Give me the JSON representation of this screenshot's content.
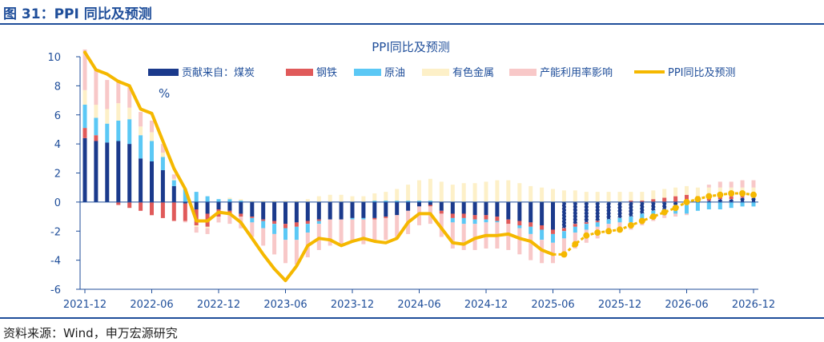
{
  "figure": {
    "title": "图 31：PPI 同比及预测",
    "source": "资料来源：Wind，申万宏源研究"
  },
  "colors": {
    "coal": "#1b3a8c",
    "steel": "#e05a5a",
    "crude_oil": "#5bc8f5",
    "nonferrous": "#fdf0c8",
    "capacity": "#f8c8c8",
    "ppi": "#f5b800",
    "axis": "#1f4e9a"
  },
  "chart_data": {
    "type": "bar",
    "title": "PPI同比及预测",
    "unit_label": "%",
    "ylim": [
      -6,
      10
    ],
    "yticks": [
      10,
      8,
      6,
      4,
      2,
      0,
      -2,
      -4,
      -6
    ],
    "x_tick_labels": [
      "2021-12",
      "2022-06",
      "2022-12",
      "2023-06",
      "2023-12",
      "2024-06",
      "2024-12",
      "2025-06",
      "2025-12",
      "2026-06",
      "2026-12"
    ],
    "x_tick_months": [
      "2021-12",
      "2022-06",
      "2022-12",
      "2023-06",
      "2023-12",
      "2024-06",
      "2024-12",
      "2025-06",
      "2025-12",
      "2026-06",
      "2026-12"
    ],
    "months": [
      "2021-12",
      "2022-01",
      "2022-02",
      "2022-03",
      "2022-04",
      "2022-05",
      "2022-06",
      "2022-07",
      "2022-08",
      "2022-09",
      "2022-10",
      "2022-11",
      "2022-12",
      "2023-01",
      "2023-02",
      "2023-03",
      "2023-04",
      "2023-05",
      "2023-06",
      "2023-07",
      "2023-08",
      "2023-09",
      "2023-10",
      "2023-11",
      "2023-12",
      "2024-01",
      "2024-02",
      "2024-03",
      "2024-04",
      "2024-05",
      "2024-06",
      "2024-07",
      "2024-08",
      "2024-09",
      "2024-10",
      "2024-11",
      "2024-12",
      "2025-01",
      "2025-02",
      "2025-03",
      "2025-04",
      "2025-05",
      "2025-06",
      "2025-07",
      "2025-08",
      "2025-09",
      "2025-10",
      "2025-11",
      "2025-12",
      "2026-01",
      "2026-02",
      "2026-03",
      "2026-04",
      "2026-05",
      "2026-06",
      "2026-07",
      "2026-08",
      "2026-09",
      "2026-10",
      "2026-11",
      "2026-12"
    ],
    "forecast_start": "2025-07",
    "grid": false,
    "legend_position": "top",
    "series": [
      {
        "name": "贡献来自：煤炭",
        "key": "coal",
        "kind": "bar",
        "values": [
          4.4,
          4.2,
          4.1,
          4.2,
          4.0,
          3.0,
          2.8,
          2.2,
          1.1,
          -0.1,
          -0.5,
          -0.8,
          -0.5,
          -0.6,
          -0.8,
          -1.0,
          -1.2,
          -1.3,
          -1.5,
          -1.4,
          -1.3,
          -1.2,
          -1.2,
          -1.2,
          -1.1,
          -1.1,
          -1.1,
          -1.0,
          -0.9,
          -0.6,
          -0.3,
          -0.2,
          -0.6,
          -0.8,
          -0.8,
          -0.9,
          -0.9,
          -1.0,
          -1.2,
          -1.3,
          -1.4,
          -1.6,
          -1.9,
          -1.8,
          -1.5,
          -1.4,
          -1.3,
          -1.2,
          -1.1,
          -1.0,
          -0.8,
          -0.6,
          -0.5,
          -0.3,
          -0.2,
          0.0,
          0.1,
          0.2,
          0.2,
          0.3,
          0.3
        ]
      },
      {
        "name": "钢铁",
        "key": "steel",
        "kind": "bar",
        "values": [
          0.7,
          0.4,
          0.0,
          -0.2,
          -0.4,
          -0.6,
          -0.9,
          -1.1,
          -1.3,
          -1.2,
          -1.1,
          -0.9,
          -0.5,
          -0.3,
          -0.2,
          -0.1,
          -0.1,
          -0.2,
          -0.3,
          -0.3,
          -0.2,
          -0.1,
          0.0,
          0.0,
          0.0,
          0.0,
          -0.1,
          -0.1,
          0.0,
          0.0,
          0.0,
          -0.1,
          -0.2,
          -0.3,
          -0.3,
          -0.3,
          -0.3,
          -0.3,
          -0.3,
          -0.3,
          -0.3,
          -0.3,
          -0.3,
          -0.2,
          -0.2,
          -0.1,
          -0.1,
          0.0,
          0.0,
          0.1,
          0.1,
          0.2,
          0.3,
          0.4,
          0.5,
          0.4,
          0.3,
          0.2,
          0.2,
          0.1,
          0.1
        ]
      },
      {
        "name": "原油",
        "key": "crude_oil",
        "kind": "bar",
        "values": [
          1.6,
          1.2,
          1.3,
          1.4,
          1.7,
          1.6,
          1.4,
          0.9,
          0.4,
          0.9,
          0.7,
          0.4,
          0.2,
          0.2,
          0.1,
          -0.3,
          -0.5,
          -0.7,
          -0.8,
          -0.9,
          -0.6,
          -0.2,
          0.0,
          0.0,
          -0.1,
          -0.1,
          0.1,
          0.1,
          0.1,
          0.1,
          0.1,
          0.1,
          0.0,
          -0.3,
          -0.4,
          -0.3,
          -0.2,
          -0.1,
          0.0,
          -0.2,
          -0.5,
          -0.7,
          -0.6,
          -0.5,
          -0.4,
          -0.4,
          -0.3,
          -0.3,
          -0.3,
          -0.4,
          -0.4,
          -0.4,
          -0.4,
          -0.5,
          -0.6,
          -0.6,
          -0.5,
          -0.5,
          -0.4,
          -0.3,
          -0.3
        ]
      },
      {
        "name": "有色金属",
        "key": "nonferrous",
        "kind": "bar",
        "values": [
          1.0,
          0.9,
          1.0,
          1.2,
          0.8,
          0.6,
          0.6,
          0.3,
          0.1,
          0.0,
          -0.1,
          -0.1,
          0.0,
          0.1,
          0.1,
          0.1,
          0.1,
          0.1,
          0.1,
          0.1,
          0.2,
          0.4,
          0.5,
          0.5,
          0.4,
          0.4,
          0.5,
          0.6,
          0.8,
          1.1,
          1.4,
          1.5,
          1.4,
          1.2,
          1.3,
          1.3,
          1.4,
          1.5,
          1.5,
          1.3,
          1.1,
          1.0,
          0.9,
          0.8,
          0.8,
          0.7,
          0.7,
          0.7,
          0.7,
          0.6,
          0.6,
          0.6,
          0.6,
          0.6,
          0.6,
          0.6,
          0.6,
          0.6,
          0.6,
          0.6,
          0.6
        ]
      },
      {
        "name": "产能利用率影响",
        "key": "capacity",
        "kind": "bar",
        "values": [
          2.8,
          2.4,
          2.0,
          1.6,
          1.4,
          1.0,
          0.8,
          0.6,
          0.3,
          -0.1,
          -0.4,
          -0.4,
          -0.4,
          -0.6,
          -0.8,
          -1.0,
          -1.2,
          -1.4,
          -1.6,
          -1.7,
          -1.7,
          -1.8,
          -1.8,
          -1.8,
          -1.6,
          -1.7,
          -1.5,
          -1.5,
          -1.6,
          -1.6,
          -1.3,
          -1.2,
          -1.6,
          -1.8,
          -1.8,
          -1.8,
          -1.8,
          -1.8,
          -1.8,
          -1.8,
          -1.8,
          -1.6,
          -1.4,
          -1.3,
          -1.1,
          -0.9,
          -0.8,
          -0.7,
          -0.6,
          -0.5,
          -0.4,
          -0.3,
          -0.2,
          -0.2,
          -0.1,
          0.0,
          0.2,
          0.4,
          0.4,
          0.5,
          0.5
        ]
      },
      {
        "name": "PPI同比及预测",
        "key": "ppi",
        "kind": "line",
        "values": [
          10.3,
          9.1,
          8.8,
          8.3,
          8.0,
          6.4,
          6.1,
          4.2,
          2.3,
          0.9,
          -1.3,
          -1.3,
          -0.7,
          -0.8,
          -1.4,
          -2.5,
          -3.6,
          -4.6,
          -5.4,
          -4.4,
          -3.0,
          -2.5,
          -2.6,
          -3.0,
          -2.7,
          -2.5,
          -2.7,
          -2.8,
          -2.5,
          -1.4,
          -0.8,
          -0.8,
          -1.8,
          -2.8,
          -2.9,
          -2.5,
          -2.3,
          -2.3,
          -2.2,
          -2.5,
          -2.7,
          -3.3,
          -3.6,
          -3.6,
          -2.9,
          -2.3,
          -2.1,
          -2.0,
          -1.9,
          -1.6,
          -1.3,
          -1.0,
          -0.7,
          -0.4,
          0.0,
          0.2,
          0.4,
          0.5,
          0.6,
          0.6,
          0.5
        ]
      }
    ]
  }
}
